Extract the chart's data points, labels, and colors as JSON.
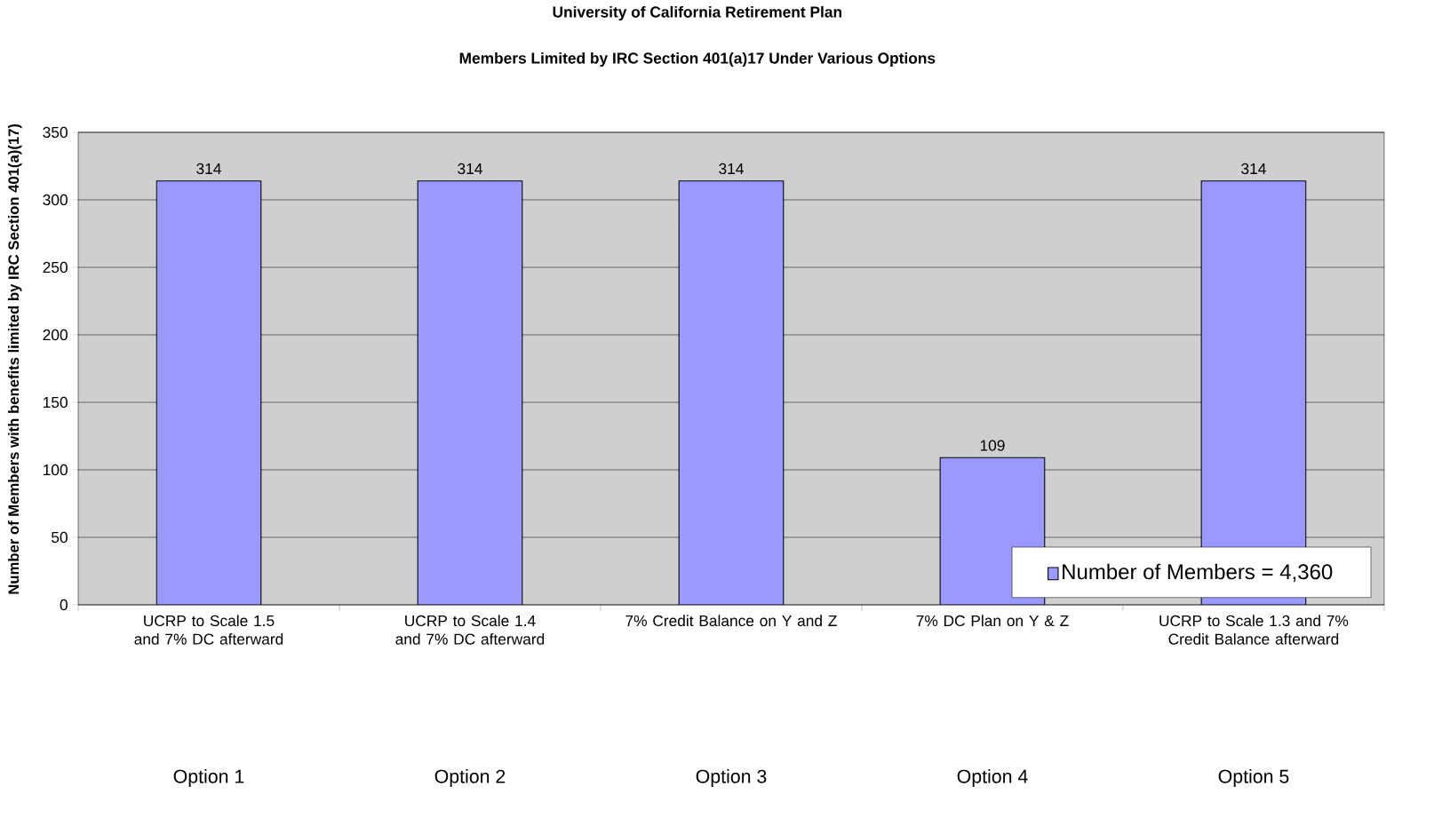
{
  "chart_data": {
    "type": "bar",
    "title": "University of California Retirement Plan",
    "subtitle": "Members Limited by IRC Section 401(a)17 Under Various Options",
    "ylabel": "Number of Members with benefits limited by IRC Section 401(a)(17)",
    "categories": [
      "UCRP to Scale 1.5 and 7% DC afterward",
      "UCRP to Scale 1.4 and 7% DC afterward",
      "7% Credit Balance on Y and Z",
      "7% DC Plan on Y & Z",
      "UCRP to Scale 1.3 and 7% Credit Balance afterward"
    ],
    "series": [
      {
        "name": "Number of Members = 4,360",
        "color": "#9999ff",
        "values": [
          314,
          314,
          314,
          109,
          314
        ]
      }
    ],
    "ylim": [
      0,
      350
    ],
    "yticks": [
      0,
      50,
      100,
      150,
      200,
      250,
      300,
      350
    ],
    "grid": "y",
    "legend": "bottom right",
    "data_labels": true,
    "annotations": [
      "Option 1",
      "Option 2",
      "Option 3",
      "Option 4",
      "Option 5"
    ]
  }
}
